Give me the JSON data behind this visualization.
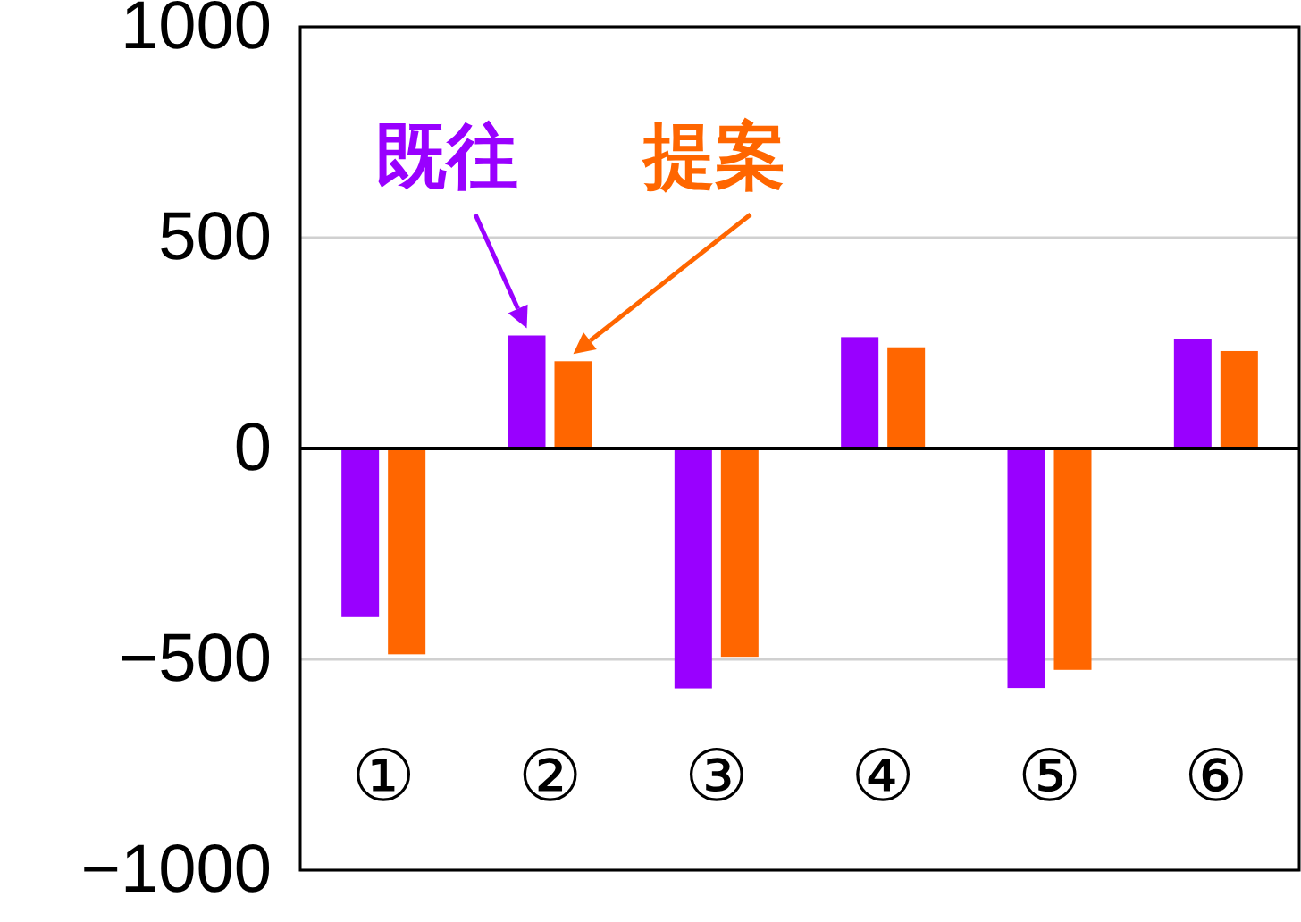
{
  "chart_data": {
    "type": "bar",
    "categories": [
      "①",
      "②",
      "③",
      "④",
      "⑤",
      "⑥"
    ],
    "series": [
      {
        "name": "既往",
        "color": "#9900ff",
        "values": [
          -400,
          268,
          -569,
          264,
          -568,
          259
        ]
      },
      {
        "name": "提案",
        "color": "#ff6600",
        "values": [
          -488,
          207,
          -494,
          240,
          -525,
          231
        ]
      }
    ],
    "ylim": [
      -1000,
      1000
    ],
    "yticks": [
      -1000,
      -500,
      0,
      500,
      1000
    ],
    "grid": "y"
  }
}
